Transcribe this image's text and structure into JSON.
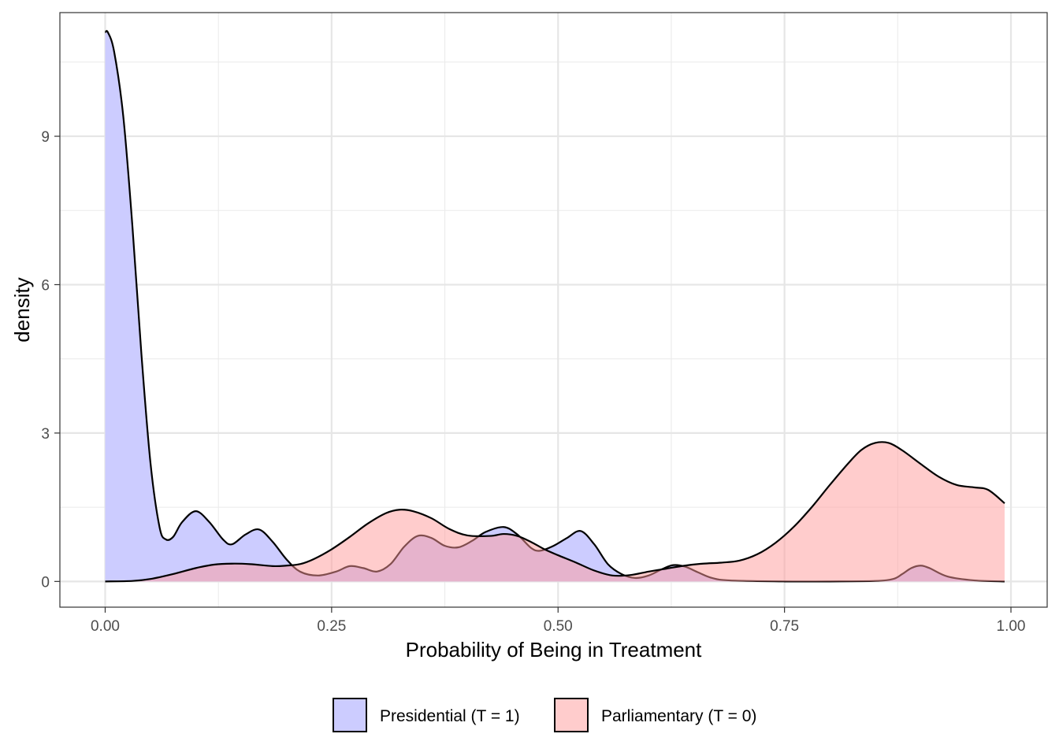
{
  "chart_data": {
    "type": "area",
    "subtype": "density",
    "title": "",
    "xlabel": "Probability of Being in Treatment",
    "ylabel": "density",
    "xlim": [
      -0.05,
      1.04
    ],
    "ylim": [
      -0.52,
      11.5
    ],
    "x_ticks": [
      0.0,
      0.25,
      0.5,
      0.75,
      1.0
    ],
    "x_tick_labels": [
      "0.00",
      "0.25",
      "0.50",
      "0.75",
      "1.00"
    ],
    "y_ticks": [
      0,
      3,
      6,
      9
    ],
    "y_tick_labels": [
      "0",
      "3",
      "6",
      "9"
    ],
    "grid": true,
    "legend_position": "bottom",
    "series": [
      {
        "name": "Presidential (T = 1)",
        "color": "#ccccff",
        "fill_opacity": 1.0,
        "points": [
          [
            0.0,
            11.1
          ],
          [
            0.003,
            11.1
          ],
          [
            0.01,
            10.7
          ],
          [
            0.02,
            9.4
          ],
          [
            0.03,
            7.2
          ],
          [
            0.04,
            4.6
          ],
          [
            0.05,
            2.4
          ],
          [
            0.06,
            1.1
          ],
          [
            0.067,
            0.85
          ],
          [
            0.075,
            0.9
          ],
          [
            0.085,
            1.2
          ],
          [
            0.1,
            1.42
          ],
          [
            0.115,
            1.2
          ],
          [
            0.13,
            0.85
          ],
          [
            0.14,
            0.75
          ],
          [
            0.155,
            0.95
          ],
          [
            0.17,
            1.05
          ],
          [
            0.185,
            0.8
          ],
          [
            0.2,
            0.45
          ],
          [
            0.215,
            0.2
          ],
          [
            0.235,
            0.12
          ],
          [
            0.255,
            0.2
          ],
          [
            0.27,
            0.31
          ],
          [
            0.285,
            0.27
          ],
          [
            0.3,
            0.2
          ],
          [
            0.315,
            0.35
          ],
          [
            0.33,
            0.7
          ],
          [
            0.345,
            0.92
          ],
          [
            0.36,
            0.88
          ],
          [
            0.375,
            0.72
          ],
          [
            0.39,
            0.69
          ],
          [
            0.405,
            0.82
          ],
          [
            0.42,
            1.0
          ],
          [
            0.44,
            1.1
          ],
          [
            0.455,
            0.95
          ],
          [
            0.47,
            0.68
          ],
          [
            0.48,
            0.62
          ],
          [
            0.495,
            0.72
          ],
          [
            0.51,
            0.88
          ],
          [
            0.525,
            1.02
          ],
          [
            0.54,
            0.75
          ],
          [
            0.555,
            0.35
          ],
          [
            0.57,
            0.15
          ],
          [
            0.585,
            0.07
          ],
          [
            0.6,
            0.12
          ],
          [
            0.615,
            0.25
          ],
          [
            0.627,
            0.33
          ],
          [
            0.64,
            0.3
          ],
          [
            0.655,
            0.18
          ],
          [
            0.67,
            0.07
          ],
          [
            0.69,
            0.02
          ],
          [
            0.75,
            0.0
          ],
          [
            0.8,
            0.0
          ],
          [
            0.85,
            0.01
          ],
          [
            0.87,
            0.05
          ],
          [
            0.88,
            0.15
          ],
          [
            0.89,
            0.27
          ],
          [
            0.9,
            0.32
          ],
          [
            0.91,
            0.27
          ],
          [
            0.93,
            0.1
          ],
          [
            0.96,
            0.02
          ],
          [
            0.993,
            0.0
          ]
        ]
      },
      {
        "name": "Parliamentary (T = 0)",
        "color": "#ff9999",
        "fill_opacity": 0.5,
        "points": [
          [
            0.0,
            0.0
          ],
          [
            0.03,
            0.01
          ],
          [
            0.05,
            0.05
          ],
          [
            0.075,
            0.15
          ],
          [
            0.1,
            0.27
          ],
          [
            0.12,
            0.34
          ],
          [
            0.14,
            0.36
          ],
          [
            0.16,
            0.35
          ],
          [
            0.185,
            0.31
          ],
          [
            0.2,
            0.32
          ],
          [
            0.215,
            0.35
          ],
          [
            0.23,
            0.45
          ],
          [
            0.25,
            0.65
          ],
          [
            0.27,
            0.9
          ],
          [
            0.29,
            1.17
          ],
          [
            0.31,
            1.38
          ],
          [
            0.325,
            1.45
          ],
          [
            0.34,
            1.42
          ],
          [
            0.36,
            1.28
          ],
          [
            0.38,
            1.06
          ],
          [
            0.4,
            0.93
          ],
          [
            0.425,
            0.92
          ],
          [
            0.44,
            0.96
          ],
          [
            0.455,
            0.92
          ],
          [
            0.47,
            0.8
          ],
          [
            0.485,
            0.65
          ],
          [
            0.5,
            0.53
          ],
          [
            0.52,
            0.38
          ],
          [
            0.54,
            0.22
          ],
          [
            0.56,
            0.12
          ],
          [
            0.58,
            0.13
          ],
          [
            0.6,
            0.2
          ],
          [
            0.62,
            0.26
          ],
          [
            0.64,
            0.32
          ],
          [
            0.66,
            0.36
          ],
          [
            0.68,
            0.38
          ],
          [
            0.7,
            0.42
          ],
          [
            0.72,
            0.55
          ],
          [
            0.74,
            0.78
          ],
          [
            0.76,
            1.1
          ],
          [
            0.78,
            1.5
          ],
          [
            0.8,
            1.95
          ],
          [
            0.82,
            2.38
          ],
          [
            0.835,
            2.66
          ],
          [
            0.85,
            2.8
          ],
          [
            0.865,
            2.8
          ],
          [
            0.88,
            2.65
          ],
          [
            0.9,
            2.38
          ],
          [
            0.92,
            2.12
          ],
          [
            0.94,
            1.95
          ],
          [
            0.96,
            1.9
          ],
          [
            0.975,
            1.85
          ],
          [
            0.993,
            1.58
          ]
        ]
      }
    ]
  }
}
